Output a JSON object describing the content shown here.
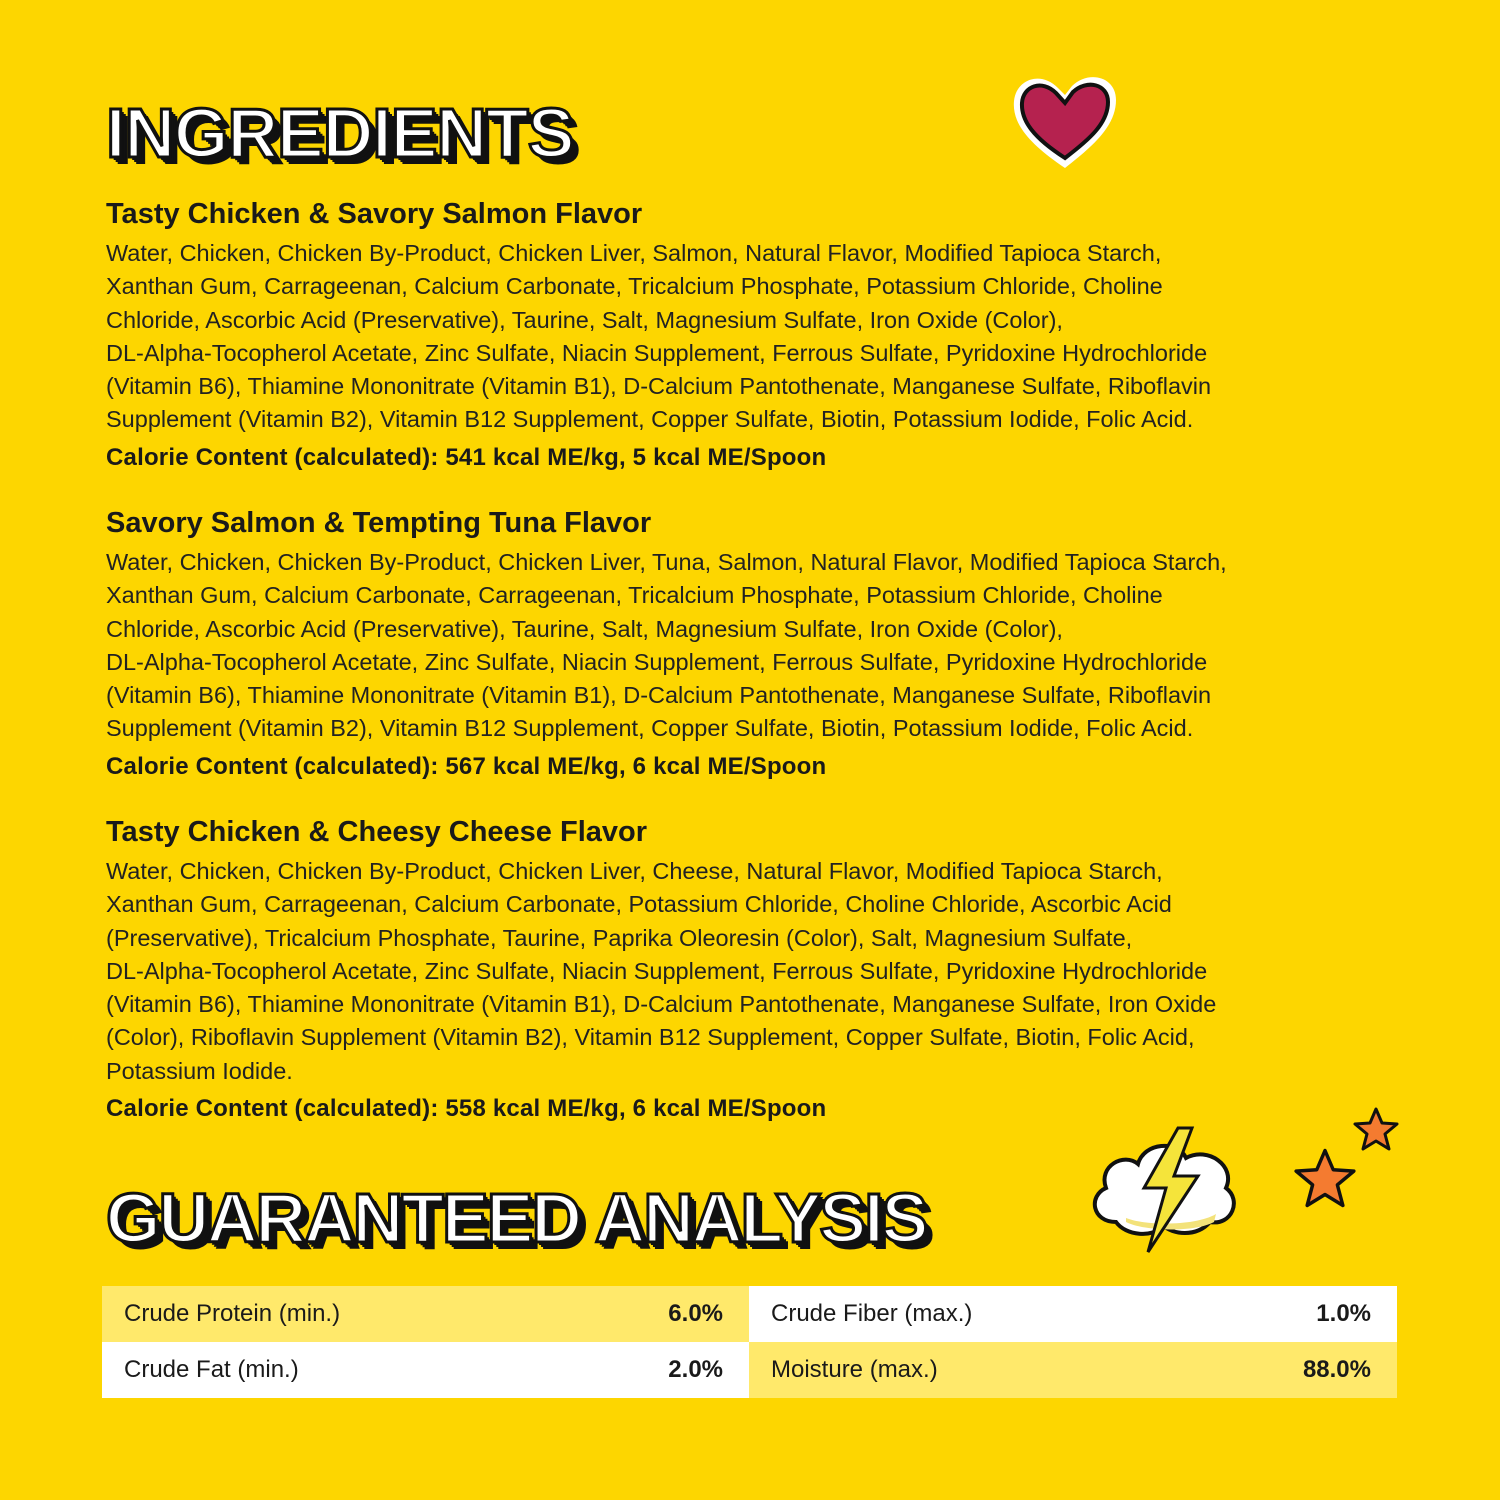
{
  "ingredients_title": "INGREDIENTS",
  "flavors": [
    {
      "name": "Tasty Chicken & Savory Salmon Flavor",
      "lines": [
        "Water, Chicken, Chicken By-Product, Chicken Liver, Salmon, Natural Flavor, Modified Tapioca Starch,",
        "Xanthan Gum, Carrageenan, Calcium Carbonate, Tricalcium Phosphate, Potassium Chloride, Choline",
        "Chloride, Ascorbic Acid (Preservative), Taurine, Salt, Magnesium Sulfate, Iron Oxide (Color),",
        "DL-Alpha-Tocopherol Acetate, Zinc Sulfate, Niacin Supplement, Ferrous Sulfate, Pyridoxine Hydrochloride",
        "(Vitamin B6), Thiamine Mononitrate (Vitamin B1), D-Calcium Pantothenate, Manganese Sulfate, Riboflavin",
        "Supplement (Vitamin B2), Vitamin B12 Supplement, Copper Sulfate, Biotin, Potassium Iodide, Folic Acid."
      ],
      "calorie": "Calorie Content (calculated): 541 kcal ME/kg, 5 kcal ME/Spoon"
    },
    {
      "name": "Savory Salmon & Tempting Tuna Flavor",
      "lines": [
        "Water, Chicken, Chicken By-Product, Chicken Liver, Tuna, Salmon, Natural Flavor, Modified Tapioca Starch,",
        "Xanthan Gum, Calcium Carbonate, Carrageenan, Tricalcium Phosphate, Potassium Chloride, Choline",
        "Chloride, Ascorbic Acid (Preservative), Taurine, Salt, Magnesium Sulfate, Iron Oxide (Color),",
        "DL-Alpha-Tocopherol Acetate, Zinc Sulfate, Niacin Supplement, Ferrous Sulfate, Pyridoxine Hydrochloride",
        "(Vitamin B6), Thiamine Mononitrate (Vitamin B1), D-Calcium Pantothenate, Manganese Sulfate, Riboflavin",
        "Supplement (Vitamin B2), Vitamin B12 Supplement, Copper Sulfate, Biotin, Potassium Iodide, Folic Acid."
      ],
      "calorie": "Calorie Content (calculated): 567 kcal ME/kg, 6 kcal ME/Spoon"
    },
    {
      "name": "Tasty Chicken & Cheesy Cheese Flavor",
      "lines": [
        "Water, Chicken, Chicken By-Product, Chicken Liver, Cheese, Natural Flavor, Modified Tapioca Starch,",
        "Xanthan Gum, Carrageenan, Calcium Carbonate, Potassium Chloride, Choline Chloride, Ascorbic Acid",
        "(Preservative), Tricalcium Phosphate, Taurine, Paprika  Oleoresin (Color), Salt, Magnesium Sulfate,",
        "DL-Alpha-Tocopherol Acetate, Zinc Sulfate, Niacin Supplement, Ferrous Sulfate, Pyridoxine Hydrochloride",
        "(Vitamin B6), Thiamine Mononitrate (Vitamin B1), D-Calcium Pantothenate, Manganese Sulfate, Iron Oxide",
        "(Color), Riboflavin Supplement (Vitamin B2), Vitamin B12 Supplement, Copper Sulfate, Biotin, Folic Acid,",
        "Potassium Iodide."
      ],
      "calorie": "Calorie Content (calculated): 558 kcal ME/kg, 6 kcal ME/Spoon"
    }
  ],
  "analysis_title": "GUARANTEED ANALYSIS",
  "analysis": [
    {
      "label": "Crude Protein (min.)",
      "value": "6.0%"
    },
    {
      "label": "Crude Fiber (max.)",
      "value": "1.0%"
    },
    {
      "label": "Crude Fat (min.)",
      "value": "2.0%"
    },
    {
      "label": "Moisture (max.)",
      "value": "88.0%"
    }
  ],
  "colors": {
    "background": "#FDD600",
    "cell_light": "#FFE96B",
    "cell_white": "#FFFFFF",
    "heart": "#B5224F",
    "star": "#F47B30"
  },
  "icons": [
    "heart-sticker-icon",
    "lightning-cloud-sticker-icon",
    "star-sticker-icon"
  ]
}
